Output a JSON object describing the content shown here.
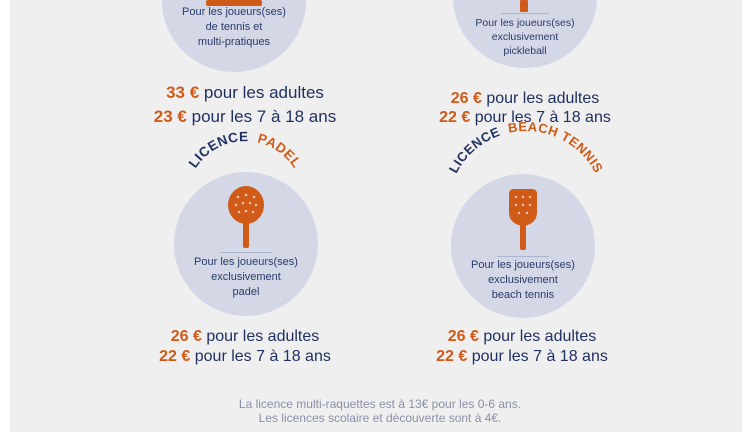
{
  "colors": {
    "orange": "#d05a17",
    "navy": "#203060",
    "circle": "#d3d7e6",
    "panel": "#efefef"
  },
  "cards": [
    {
      "title_part1": "",
      "title_part2": "",
      "desc": [
        "Pour les joueurs(ses)",
        "de tennis et",
        "multi-pratiques"
      ],
      "adult_price": "33 €",
      "adult_label": "pour les adultes",
      "youth_price": "23 €",
      "youth_label": "pour les 7 à 18 ans"
    },
    {
      "title_part1": "",
      "title_part2": "",
      "desc": [
        "Pour les joueurs(ses)",
        "exclusivement",
        "pickleball"
      ],
      "adult_price": "26 €",
      "adult_label": "pour les adultes",
      "youth_price": "22 €",
      "youth_label": "pour les 7 à 18 ans"
    },
    {
      "title_part1": "LICENCE",
      "title_part2": "PADEL",
      "icon": "padel-racket-icon",
      "desc": [
        "Pour les joueurs(ses)",
        "exclusivement",
        "padel"
      ],
      "adult_price": "26 €",
      "adult_label": "pour les adultes",
      "youth_price": "22 €",
      "youth_label": "pour les 7 à 18 ans"
    },
    {
      "title_part1": "LICENCE",
      "title_part2": "BEACH TENNIS",
      "icon": "beach-tennis-racket-icon",
      "desc": [
        "Pour les joueurs(ses)",
        "exclusivement",
        "beach tennis"
      ],
      "adult_price": "26 €",
      "adult_label": "pour les adultes",
      "youth_price": "22 €",
      "youth_label": "pour les 7 à 18 ans"
    }
  ],
  "footnote": {
    "line1": "La licence multi-raquettes est à 13€ pour les 0-6 ans.",
    "line2": "Les licences scolaire et découverte sont à 4€."
  }
}
